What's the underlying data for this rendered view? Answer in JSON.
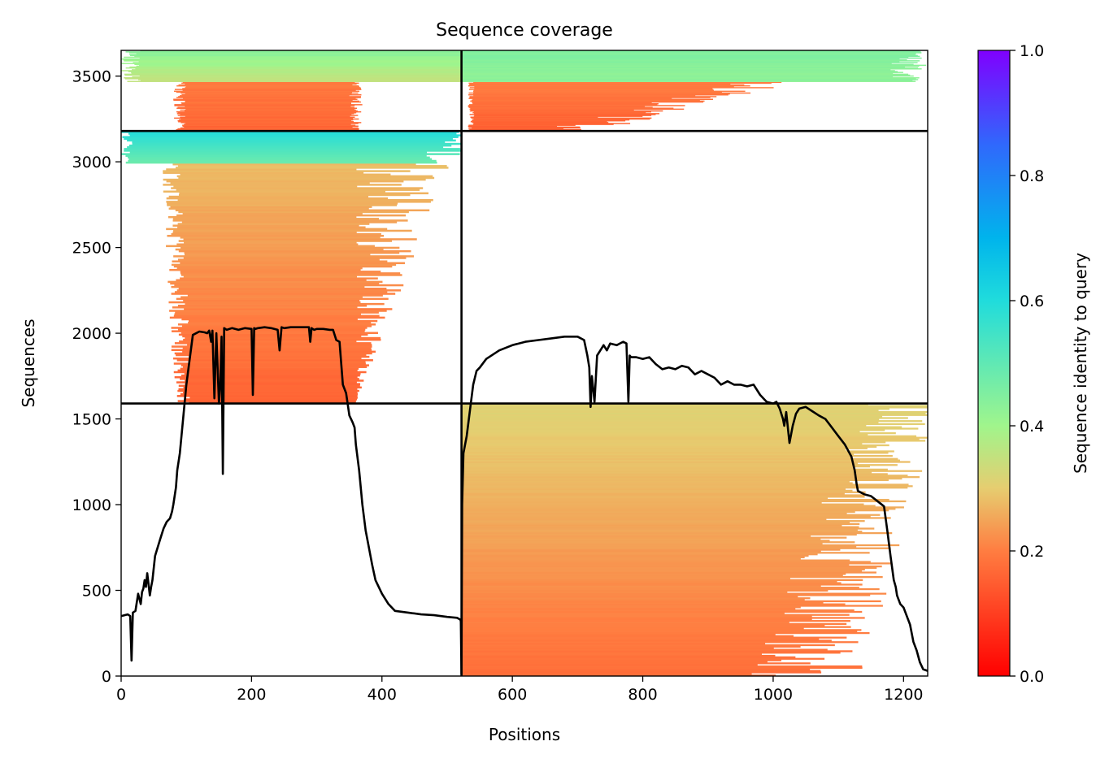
{
  "chart_data": {
    "type": "heatmap",
    "title": "Sequence coverage",
    "xlabel": "Positions",
    "ylabel": "Sequences",
    "xlim": [
      0,
      1237
    ],
    "ylim": [
      0,
      3650
    ],
    "x_ticks": [
      "0",
      "200",
      "400",
      "600",
      "800",
      "1000",
      "1200"
    ],
    "x_tick_values": [
      0,
      200,
      400,
      600,
      800,
      1000,
      1200
    ],
    "y_ticks": [
      "0",
      "500",
      "1000",
      "1500",
      "2000",
      "2500",
      "3000",
      "3500"
    ],
    "y_tick_values": [
      0,
      500,
      1000,
      1500,
      2000,
      2500,
      3000,
      3500
    ],
    "colorbar": {
      "label": "Sequence identity to query",
      "ticks": [
        "0.0",
        "0.2",
        "0.4",
        "0.6",
        "0.8",
        "1.0"
      ],
      "tick_values": [
        0.0,
        0.2,
        0.4,
        0.6,
        0.8,
        1.0
      ],
      "range": [
        0.0,
        1.0
      ],
      "colormap": "rainbow_r"
    },
    "block_dividers": {
      "x": [
        522
      ],
      "y": [
        1590,
        3180
      ]
    },
    "blocks": [
      {
        "x": [
          0,
          522
        ],
        "y": [
          3180,
          3650
        ],
        "identity_range": [
          0.15,
          0.45
        ]
      },
      {
        "x": [
          522,
          1237
        ],
        "y": [
          3180,
          3650
        ],
        "identity_range": [
          0.15,
          0.45
        ]
      },
      {
        "x": [
          0,
          522
        ],
        "y": [
          1590,
          3180
        ],
        "identity_range": [
          0.15,
          0.6
        ]
      },
      {
        "x": [
          522,
          1237
        ],
        "y": [
          1590,
          3180
        ],
        "identity_range": null
      },
      {
        "x": [
          0,
          522
        ],
        "y": [
          0,
          1590
        ],
        "identity_range": null
      },
      {
        "x": [
          522,
          1237
        ],
        "y": [
          0,
          1590
        ],
        "identity_range": [
          0.15,
          0.32
        ]
      }
    ],
    "coverage_line": {
      "color": "#000000",
      "x": [
        0,
        10,
        14,
        16,
        18,
        22,
        26,
        30,
        32,
        34,
        36,
        38,
        40,
        44,
        46,
        48,
        52,
        56,
        60,
        65,
        70,
        75,
        78,
        80,
        82,
        84,
        86,
        90,
        95,
        100,
        110,
        120,
        128,
        132,
        135,
        138,
        140,
        143,
        146,
        150,
        152,
        154,
        156,
        158,
        162,
        170,
        180,
        190,
        200,
        202,
        204,
        206,
        210,
        220,
        230,
        240,
        243,
        246,
        250,
        260,
        280,
        288,
        290,
        292,
        296,
        300,
        310,
        320,
        325,
        330,
        335,
        340,
        345,
        350,
        355,
        358,
        360,
        365,
        370,
        375,
        380,
        385,
        390,
        400,
        410,
        420,
        440,
        460,
        480,
        500,
        515,
        520,
        521,
        522,
        523,
        525,
        530,
        535,
        540,
        545,
        550,
        560,
        580,
        600,
        620,
        640,
        660,
        680,
        700,
        710,
        715,
        718,
        720,
        722,
        726,
        730,
        735,
        740,
        745,
        750,
        760,
        770,
        775,
        778,
        780,
        782,
        790,
        800,
        810,
        820,
        830,
        840,
        850,
        860,
        870,
        880,
        890,
        900,
        910,
        920,
        930,
        940,
        950,
        960,
        970,
        980,
        990,
        1000,
        1005,
        1010,
        1015,
        1017,
        1020,
        1025,
        1030,
        1035,
        1040,
        1050,
        1060,
        1070,
        1080,
        1090,
        1100,
        1110,
        1120,
        1125,
        1128,
        1130,
        1135,
        1140,
        1150,
        1160,
        1170,
        1175,
        1180,
        1185,
        1188,
        1190,
        1195,
        1200,
        1205,
        1210,
        1215,
        1220,
        1225,
        1230,
        1237
      ],
      "y": [
        350,
        360,
        350,
        90,
        370,
        380,
        480,
        420,
        490,
        510,
        560,
        520,
        600,
        470,
        520,
        560,
        700,
        750,
        800,
        860,
        900,
        920,
        960,
        1000,
        1050,
        1100,
        1200,
        1300,
        1500,
        1700,
        1990,
        2010,
        2005,
        2000,
        2015,
        1950,
        2015,
        1620,
        2000,
        1590,
        1700,
        1980,
        1180,
        2030,
        2020,
        2030,
        2020,
        2030,
        2025,
        1640,
        2030,
        2025,
        2030,
        2035,
        2030,
        2020,
        1900,
        2035,
        2030,
        2035,
        2035,
        2035,
        1950,
        2030,
        2020,
        2025,
        2025,
        2020,
        2020,
        1960,
        1950,
        1700,
        1650,
        1520,
        1480,
        1450,
        1350,
        1200,
        1000,
        850,
        750,
        650,
        560,
        480,
        420,
        380,
        370,
        360,
        355,
        345,
        340,
        330,
        320,
        10,
        1000,
        1300,
        1400,
        1550,
        1700,
        1780,
        1800,
        1850,
        1900,
        1930,
        1950,
        1960,
        1970,
        1980,
        1980,
        1960,
        1870,
        1800,
        1570,
        1750,
        1600,
        1870,
        1900,
        1930,
        1900,
        1940,
        1930,
        1950,
        1940,
        1600,
        1870,
        1860,
        1860,
        1850,
        1860,
        1820,
        1790,
        1800,
        1790,
        1810,
        1800,
        1760,
        1780,
        1760,
        1740,
        1700,
        1720,
        1700,
        1700,
        1690,
        1700,
        1640,
        1600,
        1590,
        1600,
        1560,
        1500,
        1460,
        1540,
        1360,
        1460,
        1530,
        1560,
        1570,
        1545,
        1520,
        1500,
        1450,
        1400,
        1350,
        1280,
        1200,
        1120,
        1080,
        1070,
        1060,
        1050,
        1020,
        990,
        850,
        700,
        560,
        520,
        470,
        420,
        400,
        350,
        300,
        200,
        150,
        80,
        40,
        30
      ]
    }
  }
}
